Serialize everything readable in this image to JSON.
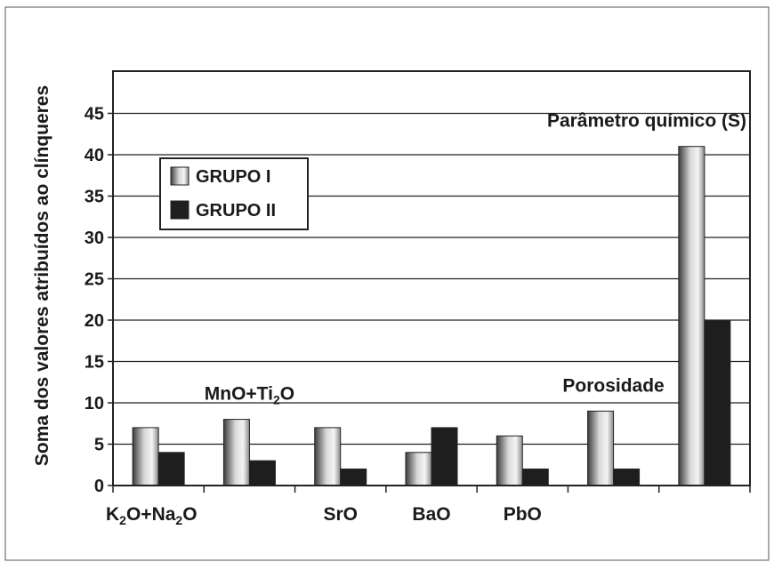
{
  "chart_data": {
    "type": "bar",
    "ylabel": "Soma dos valores atribuídos ao clínqueres",
    "ylim": [
      0,
      50
    ],
    "yticks": [
      0,
      5,
      10,
      15,
      20,
      25,
      30,
      35,
      40,
      45
    ],
    "grid": true,
    "legend_position": "top-left",
    "categories": [
      {
        "label": "K2O+Na2O",
        "segments": [
          [
            "K",
            ""
          ],
          [
            "2",
            "sub"
          ],
          [
            "O+Na",
            ""
          ],
          [
            "2",
            "sub"
          ],
          [
            "O",
            ""
          ]
        ],
        "label_row": "bottom"
      },
      {
        "label": "MnO+Ti2O",
        "segments": [
          [
            "MnO+Ti",
            ""
          ],
          [
            "2",
            "sub"
          ],
          [
            "O",
            ""
          ]
        ],
        "label_row": "top"
      },
      {
        "label": "SrO",
        "segments": [
          [
            "SrO",
            ""
          ]
        ],
        "label_row": "bottom"
      },
      {
        "label": "BaO",
        "segments": [
          [
            "BaO",
            ""
          ]
        ],
        "label_row": "bottom"
      },
      {
        "label": "PbO",
        "segments": [
          [
            "PbO",
            ""
          ]
        ],
        "label_row": "bottom"
      },
      {
        "label": "Porosidade",
        "segments": [
          [
            "Porosidade",
            ""
          ]
        ],
        "label_row": "top"
      },
      {
        "label": "Parâmetro químico (S)",
        "segments": [
          [
            "Parâmetro químico (S)",
            ""
          ]
        ],
        "label_row": "top"
      }
    ],
    "series": [
      {
        "name": "GRUPO I",
        "values": [
          7,
          8,
          7,
          4,
          6,
          9,
          41
        ],
        "style": "gradient"
      },
      {
        "name": "GRUPO II",
        "values": [
          4,
          3,
          2,
          7,
          2,
          2,
          20
        ],
        "color": "#1e1e1e"
      }
    ]
  }
}
